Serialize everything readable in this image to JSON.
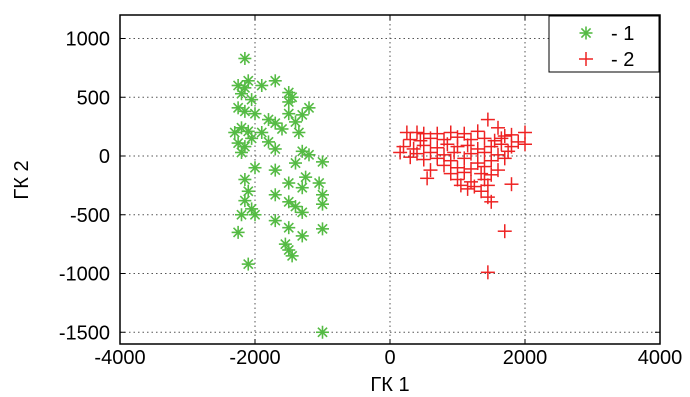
{
  "chart_data": {
    "type": "scatter",
    "title": "",
    "xlabel": "ГК 1",
    "ylabel": "ГК 2",
    "xlim": [
      -4000,
      4000
    ],
    "ylim": [
      -1600,
      1200
    ],
    "xticks": [
      -4000,
      -2000,
      0,
      2000,
      4000
    ],
    "yticks": [
      -1500,
      -1000,
      -500,
      0,
      500,
      1000
    ],
    "xtick_labels": [
      "-4000",
      "-2000",
      "0",
      "2000",
      "4000"
    ],
    "ytick_labels": [
      "-1500",
      "-1000",
      "-500",
      "0",
      "500",
      "1000"
    ],
    "grid": "dotted",
    "legend_position": "top-right",
    "series": [
      {
        "name": "- 1",
        "marker": "asterisk",
        "color": "#55bb44",
        "points": [
          [
            -2150,
            830
          ],
          [
            -2100,
            640
          ],
          [
            -1700,
            640
          ],
          [
            -2250,
            600
          ],
          [
            -2150,
            580
          ],
          [
            -1900,
            600
          ],
          [
            -1500,
            540
          ],
          [
            -1450,
            500
          ],
          [
            -2200,
            530
          ],
          [
            -2050,
            480
          ],
          [
            -1500,
            460
          ],
          [
            -2250,
            410
          ],
          [
            -2150,
            380
          ],
          [
            -1200,
            410
          ],
          [
            -1300,
            350
          ],
          [
            -1500,
            360
          ],
          [
            -1800,
            310
          ],
          [
            -2000,
            360
          ],
          [
            -1700,
            280
          ],
          [
            -1400,
            290
          ],
          [
            -1600,
            230
          ],
          [
            -2200,
            240
          ],
          [
            -2300,
            200
          ],
          [
            -2100,
            210
          ],
          [
            -1900,
            200
          ],
          [
            -2050,
            150
          ],
          [
            -1350,
            200
          ],
          [
            -2250,
            110
          ],
          [
            -1800,
            120
          ],
          [
            -2150,
            80
          ],
          [
            -2200,
            30
          ],
          [
            -1700,
            60
          ],
          [
            -1300,
            40
          ],
          [
            -1200,
            10
          ],
          [
            -1000,
            -50
          ],
          [
            -1400,
            -60
          ],
          [
            -2000,
            -100
          ],
          [
            -1700,
            -120
          ],
          [
            -1250,
            -180
          ],
          [
            -1500,
            -230
          ],
          [
            -2150,
            -200
          ],
          [
            -1050,
            -230
          ],
          [
            -1300,
            -270
          ],
          [
            -2100,
            -300
          ],
          [
            -1700,
            -330
          ],
          [
            -1000,
            -330
          ],
          [
            -2150,
            -380
          ],
          [
            -1500,
            -390
          ],
          [
            -2050,
            -450
          ],
          [
            -1400,
            -430
          ],
          [
            -1000,
            -410
          ],
          [
            -1300,
            -480
          ],
          [
            -2200,
            -500
          ],
          [
            -2000,
            -500
          ],
          [
            -1700,
            -550
          ],
          [
            -1000,
            -620
          ],
          [
            -1500,
            -610
          ],
          [
            -2250,
            -650
          ],
          [
            -1300,
            -680
          ],
          [
            -1550,
            -750
          ],
          [
            -1500,
            -800
          ],
          [
            -1450,
            -850
          ],
          [
            -2100,
            -920
          ],
          [
            -1000,
            -1500
          ]
        ]
      },
      {
        "name": "- 2",
        "marker": "plus",
        "color": "#ee2222",
        "points": [
          [
            1450,
            310
          ],
          [
            1600,
            240
          ],
          [
            250,
            200
          ],
          [
            400,
            200
          ],
          [
            500,
            190
          ],
          [
            700,
            190
          ],
          [
            900,
            200
          ],
          [
            1100,
            190
          ],
          [
            1300,
            210
          ],
          [
            1700,
            170
          ],
          [
            1800,
            180
          ],
          [
            2000,
            200
          ],
          [
            300,
            140
          ],
          [
            450,
            130
          ],
          [
            600,
            150
          ],
          [
            800,
            140
          ],
          [
            1000,
            160
          ],
          [
            1200,
            140
          ],
          [
            1400,
            150
          ],
          [
            1550,
            130
          ],
          [
            1650,
            150
          ],
          [
            1900,
            120
          ],
          [
            2000,
            100
          ],
          [
            200,
            80
          ],
          [
            350,
            60
          ],
          [
            500,
            90
          ],
          [
            700,
            70
          ],
          [
            850,
            100
          ],
          [
            1000,
            80
          ],
          [
            1150,
            90
          ],
          [
            1300,
            60
          ],
          [
            1500,
            80
          ],
          [
            1650,
            100
          ],
          [
            1800,
            80
          ],
          [
            150,
            30
          ],
          [
            400,
            20
          ],
          [
            600,
            30
          ],
          [
            800,
            10
          ],
          [
            950,
            30
          ],
          [
            1200,
            20
          ],
          [
            1400,
            30
          ],
          [
            1600,
            10
          ],
          [
            1750,
            40
          ],
          [
            300,
            -10
          ],
          [
            500,
            -30
          ],
          [
            700,
            -20
          ],
          [
            900,
            -40
          ],
          [
            1100,
            -20
          ],
          [
            1300,
            -60
          ],
          [
            1500,
            -40
          ],
          [
            1700,
            -20
          ],
          [
            800,
            -80
          ],
          [
            1000,
            -100
          ],
          [
            1200,
            -110
          ],
          [
            1400,
            -90
          ],
          [
            1600,
            -120
          ],
          [
            600,
            -120
          ],
          [
            900,
            -150
          ],
          [
            1100,
            -140
          ],
          [
            1350,
            -150
          ],
          [
            1500,
            -160
          ],
          [
            1000,
            -200
          ],
          [
            1200,
            -220
          ],
          [
            1400,
            -200
          ],
          [
            550,
            -190
          ],
          [
            1050,
            -250
          ],
          [
            1250,
            -260
          ],
          [
            1450,
            -250
          ],
          [
            1800,
            -240
          ],
          [
            1150,
            -280
          ],
          [
            1350,
            -300
          ],
          [
            1450,
            -350
          ],
          [
            1500,
            -390
          ],
          [
            1700,
            -640
          ],
          [
            1450,
            -990
          ]
        ]
      }
    ]
  }
}
